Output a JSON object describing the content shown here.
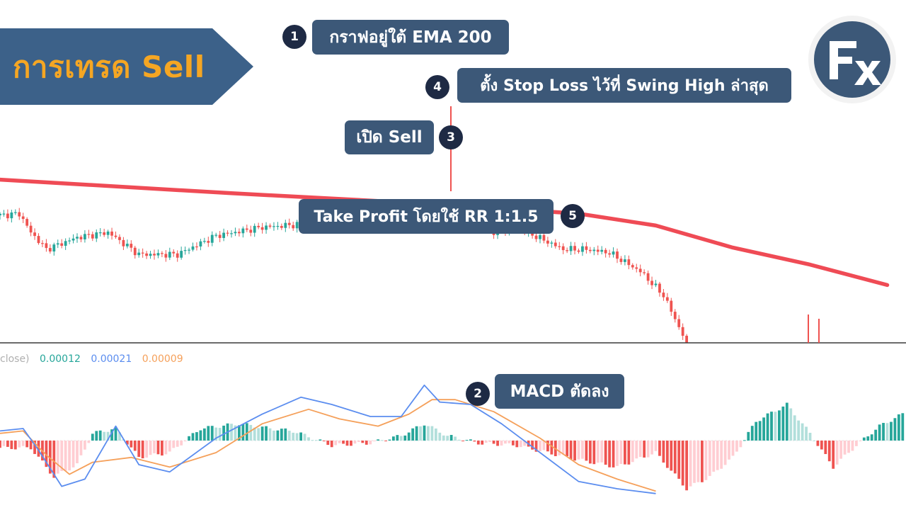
{
  "banner": {
    "title": "การเทรด Sell"
  },
  "callouts": [
    {
      "number": "1",
      "text": "กราฟอยู่ใต้ EMA 200"
    },
    {
      "number": "2",
      "text": "MACD ตัดลง"
    },
    {
      "number": "3",
      "text": "เปิด Sell"
    },
    {
      "number": "4",
      "text": "ตั้ง Stop Loss ไว้ที่ Swing High ล่าสุด"
    },
    {
      "number": "5",
      "text": "Take Profit โดยใช้ RR 1:1.5"
    }
  ],
  "macd_legend": {
    "prefix": "close)",
    "histogram": "0.00012",
    "macd": "0.00021",
    "signal": "0.00009"
  },
  "logo": {
    "text": "Fx"
  },
  "colors": {
    "bull": "#26a69a",
    "bear": "#ef5350",
    "bull_light": "#b2dfdb",
    "bear_light": "#ffcdd2",
    "ema": "#ef4b55",
    "macd_line": "#5b8def",
    "signal_line": "#f5a05a",
    "callout_bg": "#3c5878",
    "badge_bg": "#1e2a44",
    "banner_text": "#f5a623"
  },
  "chart_data": {
    "type": "candlestick",
    "indicators": [
      "EMA 200",
      "MACD"
    ],
    "price_trend_anchors": [
      {
        "bar": 0,
        "price": 150
      },
      {
        "bar": 5,
        "price": 152
      },
      {
        "bar": 8,
        "price": 130
      },
      {
        "bar": 12,
        "price": 110
      },
      {
        "bar": 20,
        "price": 124
      },
      {
        "bar": 28,
        "price": 130
      },
      {
        "bar": 36,
        "price": 104
      },
      {
        "bar": 46,
        "price": 104
      },
      {
        "bar": 56,
        "price": 126
      },
      {
        "bar": 68,
        "price": 136
      },
      {
        "bar": 80,
        "price": 140
      },
      {
        "bar": 92,
        "price": 136
      },
      {
        "bar": 104,
        "price": 138
      },
      {
        "bar": 109,
        "price": 158
      },
      {
        "bar": 112,
        "price": 150
      },
      {
        "bar": 116,
        "price": 140
      },
      {
        "bar": 122,
        "price": 148
      },
      {
        "bar": 128,
        "price": 130
      },
      {
        "bar": 134,
        "price": 136
      },
      {
        "bar": 146,
        "price": 110
      },
      {
        "bar": 152,
        "price": 110
      },
      {
        "bar": 158,
        "price": 106
      },
      {
        "bar": 166,
        "price": 84
      },
      {
        "bar": 172,
        "price": 56
      },
      {
        "bar": 178,
        "price": 0
      }
    ],
    "ema_200": [
      {
        "bar": 0,
        "price": 192
      },
      {
        "bar": 60,
        "price": 176
      },
      {
        "bar": 110,
        "price": 164
      },
      {
        "bar": 150,
        "price": 152
      },
      {
        "bar": 170,
        "price": 138
      },
      {
        "bar": 190,
        "price": 112
      },
      {
        "bar": 210,
        "price": 92
      },
      {
        "bar": 230,
        "price": 68
      }
    ],
    "macd_series": [
      {
        "name": "MACD",
        "points": [
          [
            0,
            8
          ],
          [
            6,
            10
          ],
          [
            10,
            -8
          ],
          [
            16,
            -38
          ],
          [
            22,
            -32
          ],
          [
            30,
            12
          ],
          [
            36,
            -20
          ],
          [
            44,
            -26
          ],
          [
            56,
            2
          ],
          [
            68,
            22
          ],
          [
            78,
            36
          ],
          [
            86,
            30
          ],
          [
            96,
            20
          ],
          [
            104,
            20
          ],
          [
            110,
            46
          ],
          [
            114,
            32
          ],
          [
            122,
            30
          ],
          [
            130,
            14
          ],
          [
            140,
            -10
          ],
          [
            150,
            -34
          ],
          [
            160,
            -40
          ],
          [
            170,
            -44
          ]
        ]
      },
      {
        "name": "Signal",
        "points": [
          [
            0,
            6
          ],
          [
            6,
            8
          ],
          [
            12,
            -12
          ],
          [
            18,
            -28
          ],
          [
            24,
            -18
          ],
          [
            34,
            -14
          ],
          [
            44,
            -22
          ],
          [
            56,
            -10
          ],
          [
            68,
            14
          ],
          [
            80,
            26
          ],
          [
            88,
            18
          ],
          [
            98,
            12
          ],
          [
            106,
            22
          ],
          [
            112,
            34
          ],
          [
            118,
            34
          ],
          [
            128,
            24
          ],
          [
            140,
            2
          ],
          [
            150,
            -20
          ],
          [
            160,
            -32
          ],
          [
            170,
            -42
          ]
        ]
      }
    ]
  }
}
